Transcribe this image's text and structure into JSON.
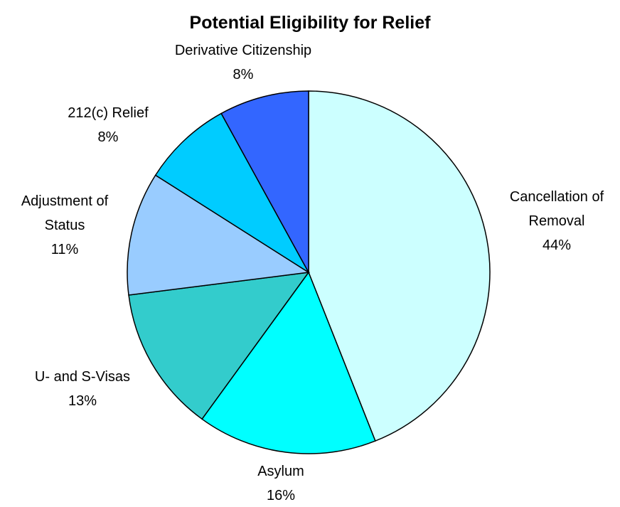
{
  "chart_data": {
    "type": "pie",
    "title": "Potential Eligibility for Relief",
    "start_angle_deg": 0,
    "direction": "clockwise",
    "slices": [
      {
        "label_lines": [
          "Cancellation of",
          "Removal"
        ],
        "value": 44,
        "value_label": "44%",
        "color": "#ccffff"
      },
      {
        "label_lines": [
          "Asylum"
        ],
        "value": 16,
        "value_label": "16%",
        "color": "#00ffff"
      },
      {
        "label_lines": [
          "U- and S-Visas"
        ],
        "value": 13,
        "value_label": "13%",
        "color": "#33cccc"
      },
      {
        "label_lines": [
          "Adjustment of",
          "Status"
        ],
        "value": 11,
        "value_label": "11%",
        "color": "#99ccff"
      },
      {
        "label_lines": [
          "212(c) Relief"
        ],
        "value": 8,
        "value_label": "8%",
        "color": "#00ccff"
      },
      {
        "label_lines": [
          "Derivative Citizenship"
        ],
        "value": 8,
        "value_label": "8%",
        "color": "#3366ff"
      }
    ]
  }
}
